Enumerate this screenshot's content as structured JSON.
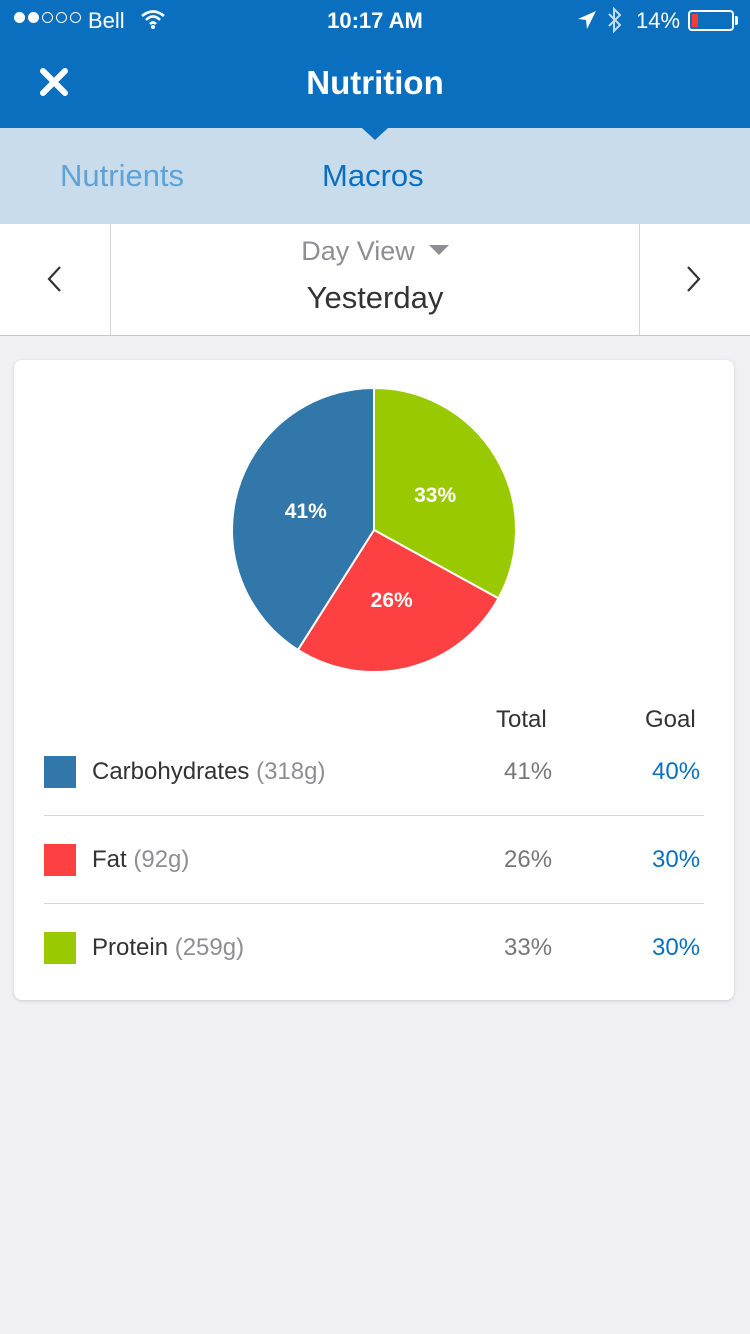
{
  "status_bar": {
    "carrier": "Bell",
    "time": "10:17 AM",
    "battery": "14%"
  },
  "nav": {
    "title": "Nutrition"
  },
  "tabs": [
    {
      "label": "Nutrients",
      "selected": false
    },
    {
      "label": "Macros",
      "selected": true
    }
  ],
  "date_nav": {
    "view_label": "Day View",
    "date_label": "Yesterday"
  },
  "table": {
    "total_header": "Total",
    "goal_header": "Goal",
    "rows": [
      {
        "name": "Carbohydrates",
        "grams": "(318g)",
        "total": "41%",
        "goal": "40%",
        "color": "#3277aa"
      },
      {
        "name": "Fat",
        "grams": "(92g)",
        "total": "26%",
        "goal": "30%",
        "color": "#fd4142"
      },
      {
        "name": "Protein",
        "grams": "(259g)",
        "total": "33%",
        "goal": "30%",
        "color": "#99c900"
      }
    ]
  },
  "chart_data": {
    "type": "pie",
    "slices": [
      {
        "label": "33%",
        "value": 33,
        "color": "#99c900"
      },
      {
        "label": "26%",
        "value": 26,
        "color": "#fd4142"
      },
      {
        "label": "41%",
        "value": 41,
        "color": "#3277aa"
      }
    ]
  },
  "colors": {
    "accent": "#0a6fbe",
    "tab_bar": "#c9dcec"
  }
}
